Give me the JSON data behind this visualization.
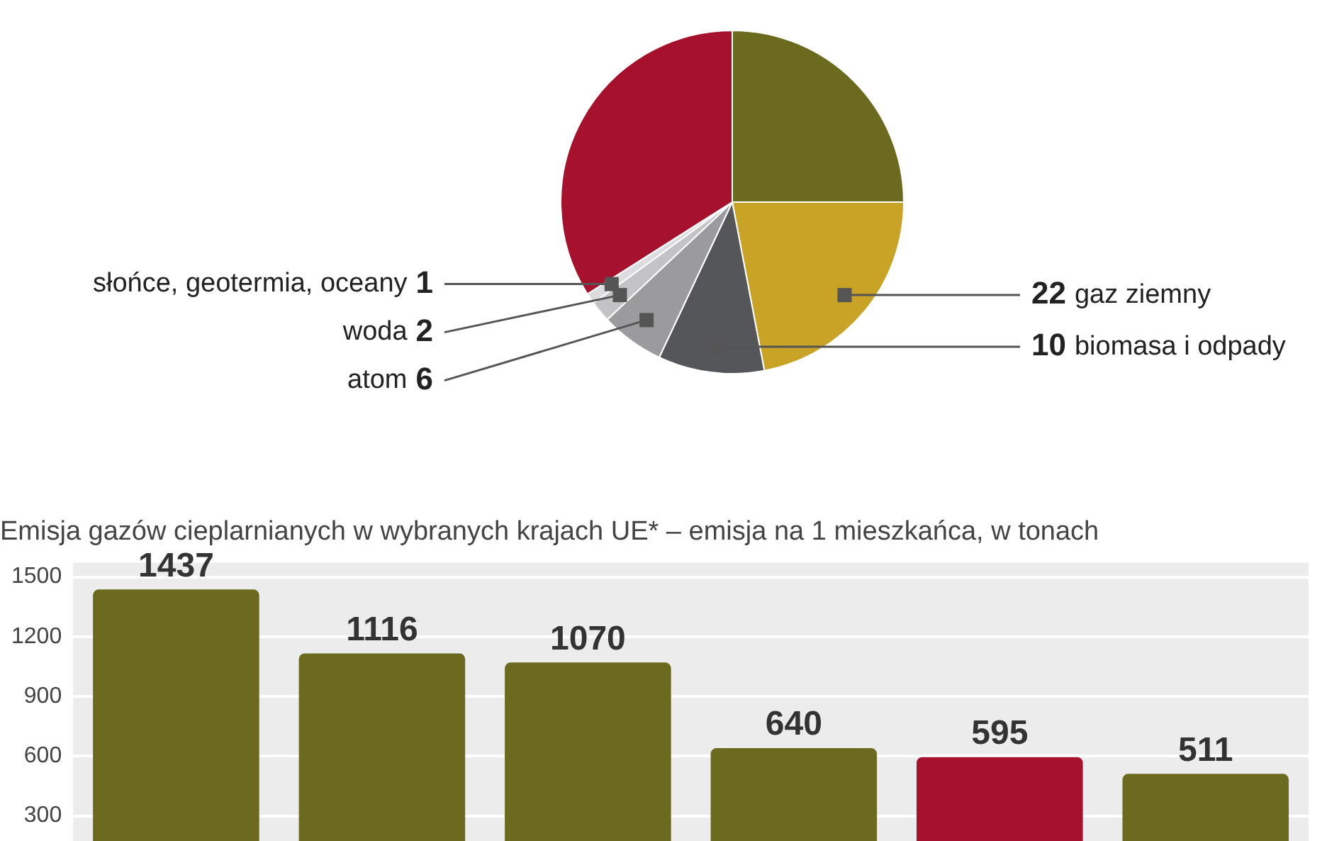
{
  "chart_data": [
    {
      "type": "pie",
      "categories": [
        null,
        "gaz ziemny",
        "biomasa i odpady",
        "atom",
        "woda",
        "słońce, geotermia, oceany",
        null
      ],
      "values": [
        25,
        22,
        10,
        6,
        2,
        1,
        34
      ],
      "colors": [
        "#6b6a1e",
        "#c9a325",
        "#55565a",
        "#9b9b9d",
        "#c3c3c5",
        "#dcdcde",
        "#a6122d"
      ],
      "value_labels": [
        null,
        "22",
        "10",
        "6",
        "2",
        "1",
        null
      ],
      "legend": false
    },
    {
      "type": "bar",
      "title": "Emisja gazów cieplarnianych w wybranych krajach UE* – emisja na 1 mieszkańca, w tonach",
      "categories": [
        null,
        null,
        null,
        null,
        null,
        null
      ],
      "values": [
        1437,
        1116,
        1070,
        640,
        595,
        511
      ],
      "colors": [
        "#6b6a1e",
        "#6b6a1e",
        "#6b6a1e",
        "#6b6a1e",
        "#a6122d",
        "#6b6a1e"
      ],
      "ylim": [
        0,
        1500
      ],
      "yticks": [
        300,
        600,
        900,
        1200,
        1500
      ],
      "grid": "y",
      "tick_labels": "y",
      "data_labels": true,
      "legend": false
    }
  ]
}
